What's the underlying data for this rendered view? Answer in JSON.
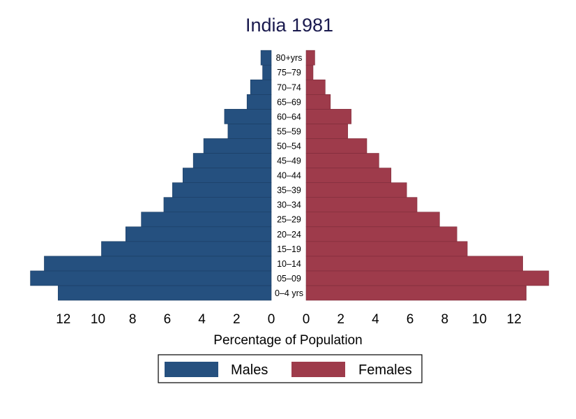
{
  "chart_data": {
    "type": "bar",
    "title": "India 1981",
    "xlabel": "Percentage of Population",
    "categories": [
      "0–4 yrs",
      "05–09",
      "10–14",
      "15–19",
      "20–24",
      "25–29",
      "30–34",
      "35–39",
      "40–44",
      "45–49",
      "50–54",
      "55–59",
      "60–64",
      "65–69",
      "70–74",
      "75–79",
      "80+yrs"
    ],
    "series": [
      {
        "name": "Males",
        "color": "#25507f",
        "values": [
          12.3,
          13.9,
          13.1,
          9.8,
          8.4,
          7.5,
          6.2,
          5.7,
          5.1,
          4.5,
          3.9,
          2.5,
          2.7,
          1.4,
          1.2,
          0.5,
          0.6
        ]
      },
      {
        "name": "Females",
        "color": "#9e3b4b",
        "values": [
          12.7,
          14.0,
          12.5,
          9.3,
          8.7,
          7.7,
          6.4,
          5.8,
          4.9,
          4.2,
          3.5,
          2.4,
          2.6,
          1.4,
          1.1,
          0.4,
          0.5
        ]
      }
    ],
    "x_ticks_left": [
      "12",
      "10",
      "8",
      "6",
      "4",
      "2",
      "0"
    ],
    "x_ticks_right": [
      "0",
      "2",
      "4",
      "6",
      "8",
      "10",
      "12"
    ],
    "xlim_per_side": [
      0,
      14
    ],
    "orientation": "horizontal-pyramid",
    "legend_position": "bottom-center",
    "grid": false
  }
}
